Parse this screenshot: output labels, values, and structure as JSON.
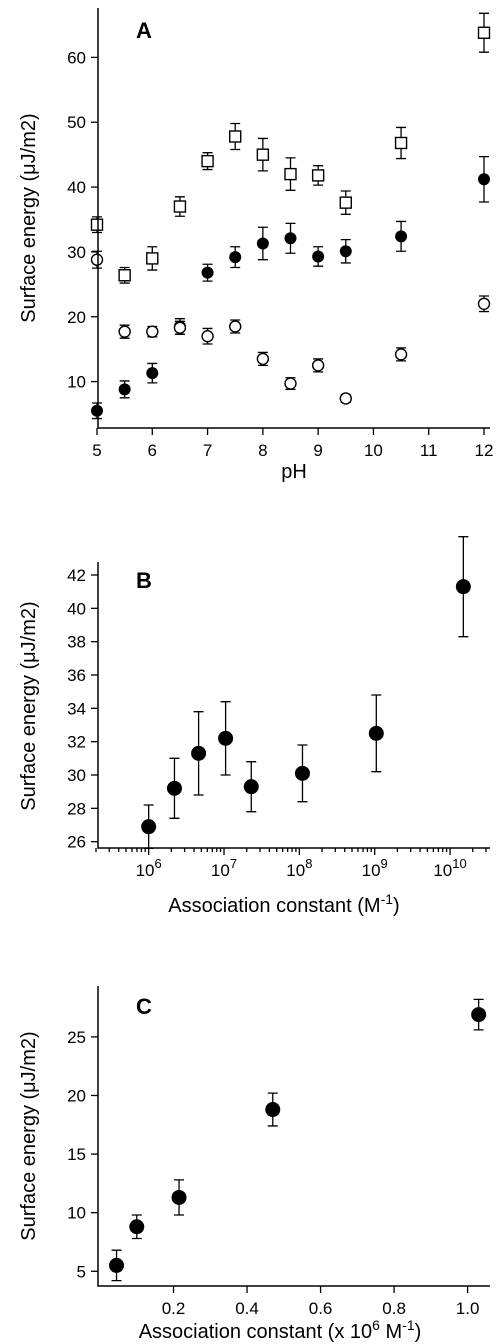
{
  "chart_data": [
    {
      "type": "scatter",
      "panel_label": "A",
      "xlabel": "pH",
      "ylabel": "Surface energy (μJ/m2)",
      "xlim": [
        5,
        12
      ],
      "ylim": [
        3,
        67
      ],
      "xticks": [
        5,
        6,
        7,
        8,
        9,
        10,
        11,
        12
      ],
      "yticks": [
        10,
        20,
        30,
        40,
        50,
        60
      ],
      "grid": false,
      "series": [
        {
          "marker": "open-square",
          "x": [
            5,
            5.5,
            6,
            6.5,
            7,
            7.5,
            8,
            8.5,
            9,
            9.5,
            10.5,
            12
          ],
          "y": [
            34.2,
            26.4,
            29.0,
            37.0,
            44.0,
            47.8,
            45.0,
            42.0,
            41.8,
            37.6,
            46.8,
            63.8
          ],
          "err": [
            1.2,
            1.2,
            1.8,
            1.5,
            1.3,
            2.0,
            2.5,
            2.5,
            1.5,
            1.8,
            2.4,
            3.0
          ]
        },
        {
          "marker": "filled-circle",
          "x": [
            5,
            5.5,
            6,
            6.5,
            7,
            7.5,
            8,
            8.5,
            9,
            9.5,
            10.5,
            12
          ],
          "y": [
            5.5,
            8.8,
            11.3,
            18.5,
            26.8,
            29.2,
            31.3,
            32.1,
            29.3,
            30.1,
            32.4,
            41.2
          ],
          "err": [
            1.2,
            1.3,
            1.5,
            1.2,
            1.3,
            1.6,
            2.5,
            2.3,
            1.5,
            1.8,
            2.3,
            3.5
          ]
        },
        {
          "marker": "open-circle",
          "x": [
            5,
            5.5,
            6,
            6.5,
            7,
            7.5,
            8,
            8.5,
            9,
            9.5,
            10.5,
            12
          ],
          "y": [
            28.8,
            17.7,
            17.7,
            18.3,
            17.0,
            18.5,
            13.5,
            9.7,
            12.5,
            7.4,
            14.2,
            22.0
          ],
          "err": [
            1.3,
            1.0,
            0.8,
            1.0,
            1.2,
            1.0,
            1.0,
            0.9,
            1.0,
            0.6,
            1.0,
            1.2
          ]
        }
      ]
    },
    {
      "type": "scatter",
      "panel_label": "B",
      "xlabel": "Association constant (M",
      "xlabel_sup": "-1",
      "xlabel_tail": ")",
      "ylabel": "Surface energy (μJ/m2)",
      "xscale": "log",
      "xlim": [
        200000,
        30000000000
      ],
      "ylim": [
        25.8,
        42.6
      ],
      "xticks": [
        {
          "base": "10",
          "exp": "6",
          "value": 1000000
        },
        {
          "base": "10",
          "exp": "7",
          "value": 10000000
        },
        {
          "base": "10",
          "exp": "8",
          "value": 100000000
        },
        {
          "base": "10",
          "exp": "9",
          "value": 1000000000
        },
        {
          "base": "10",
          "exp": "10",
          "value": 10000000000
        }
      ],
      "yticks": [
        26,
        28,
        30,
        32,
        34,
        36,
        38,
        40,
        42
      ],
      "grid": false,
      "series": [
        {
          "marker": "filled-circle",
          "x": [
            1000000,
            2200000,
            4600000,
            10500000,
            23000000,
            110000000,
            1050000000,
            15000000000
          ],
          "y": [
            26.9,
            29.2,
            31.3,
            32.2,
            29.3,
            30.1,
            32.5,
            41.3
          ],
          "err": [
            1.3,
            1.8,
            2.5,
            2.2,
            1.5,
            1.7,
            2.3,
            3.0
          ]
        }
      ]
    },
    {
      "type": "scatter",
      "panel_label": "C",
      "xlabel": "Association constant (x 10",
      "xlabel_sup": "6",
      "xlabel_mid": " M",
      "xlabel_sup2": "-1",
      "xlabel_tail": ")",
      "ylabel": "Surface energy (μJ/m2)",
      "xlim": [
        0,
        1.05
      ],
      "ylim": [
        4,
        29
      ],
      "xticks": [
        0.2,
        0.4,
        0.6,
        0.8,
        1.0
      ],
      "xtick_labels": [
        "0.2",
        "0.4",
        "0.6",
        "0.8",
        "1.0"
      ],
      "yticks": [
        5,
        10,
        15,
        20,
        25
      ],
      "grid": false,
      "series": [
        {
          "marker": "filled-circle",
          "x": [
            0.045,
            0.1,
            0.215,
            0.47,
            1.03
          ],
          "y": [
            5.5,
            8.8,
            11.3,
            18.8,
            26.9
          ],
          "err": [
            1.3,
            1.0,
            1.5,
            1.4,
            1.3
          ]
        }
      ]
    }
  ]
}
